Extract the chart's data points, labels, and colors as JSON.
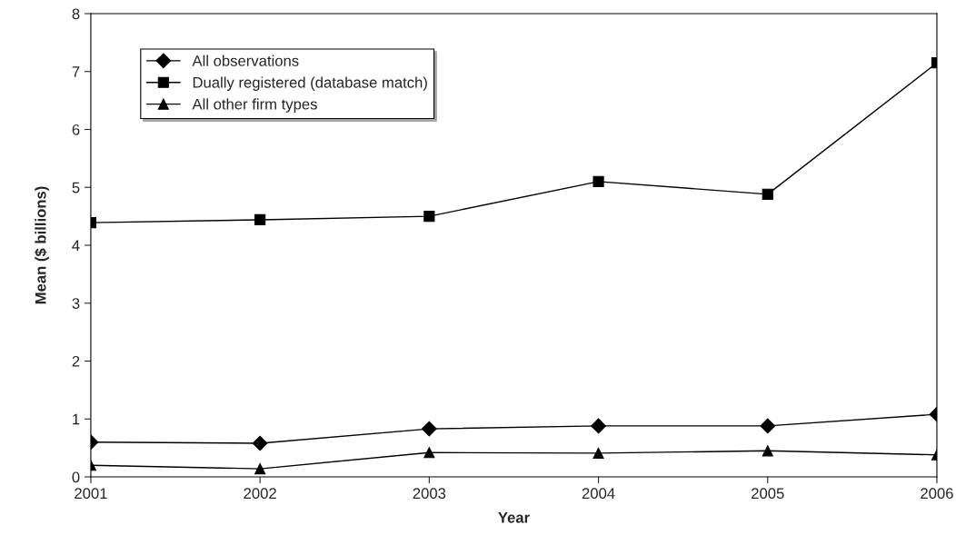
{
  "chart_data": {
    "type": "line",
    "xlabel": "Year",
    "ylabel": "Mean ($ billions)",
    "x": [
      2001,
      2002,
      2003,
      2004,
      2005,
      2006
    ],
    "series": [
      {
        "name": "All observations",
        "color": "#000000",
        "marker": "diamond",
        "values": [
          0.6,
          0.58,
          0.83,
          0.88,
          0.88,
          1.08
        ]
      },
      {
        "name": "Dually registered (database match)",
        "color": "#000000",
        "marker": "square",
        "values": [
          4.39,
          4.44,
          4.5,
          5.1,
          4.88,
          7.15
        ]
      },
      {
        "name": "All other firm types",
        "color": "#000000",
        "marker": "triangle",
        "values": [
          0.2,
          0.14,
          0.42,
          0.41,
          0.45,
          0.38
        ]
      }
    ],
    "xlim": [
      2001,
      2006
    ],
    "xticks": [
      2001,
      2002,
      2003,
      2004,
      2005,
      2006
    ],
    "ylim": [
      0,
      8
    ],
    "yticks": [
      0,
      1,
      2,
      3,
      4,
      5,
      6,
      7,
      8
    ],
    "grid": false,
    "legend": "top left",
    "line_style": "solid"
  }
}
